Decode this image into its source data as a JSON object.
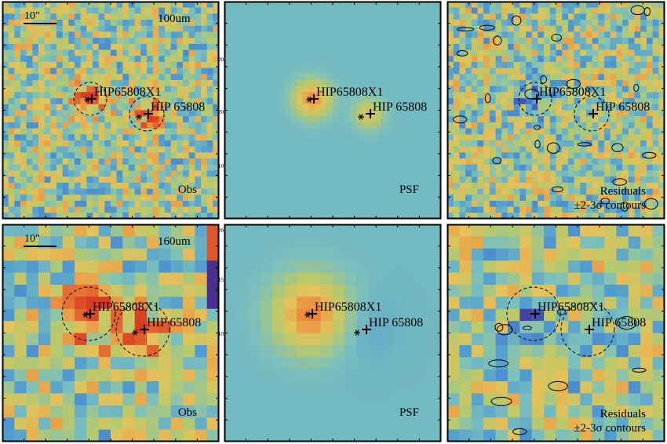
{
  "figure": {
    "scale_bar": "10\"",
    "panels": [
      {
        "id": "obs-100",
        "row": "top",
        "kind": "obs",
        "band": "100um",
        "label": "Obs",
        "sublabel": "",
        "pixels": 36,
        "seed": 11
      },
      {
        "id": "psf-100",
        "row": "top",
        "kind": "psf",
        "band": "",
        "label": "PSF",
        "sublabel": "",
        "pixels": 36,
        "seed": 12
      },
      {
        "id": "res-100",
        "row": "top",
        "kind": "res",
        "band": "",
        "label": "Residuals",
        "sublabel": "±2-3σ contours",
        "pixels": 36,
        "seed": 13
      },
      {
        "id": "obs-160",
        "row": "bottom",
        "kind": "obs",
        "band": "160um",
        "label": "Obs",
        "sublabel": "",
        "pixels": 18,
        "seed": 21
      },
      {
        "id": "psf-160",
        "row": "bottom",
        "kind": "psf",
        "band": "",
        "label": "PSF",
        "sublabel": "",
        "pixels": 18,
        "seed": 22
      },
      {
        "id": "res-160",
        "row": "bottom",
        "kind": "res",
        "band": "",
        "label": "Residuals",
        "sublabel": "±2-3σ contours",
        "pixels": 18,
        "seed": 23
      }
    ],
    "sources": [
      {
        "name": "HIP65808X1"
      },
      {
        "name": "HIP 65808"
      }
    ],
    "psf_ticks": {
      "top": [
        "10",
        "20",
        "30"
      ],
      "bottom": [
        "10",
        "15",
        "20"
      ]
    },
    "colormap": [
      "#4a2f8f",
      "#3f5fc0",
      "#4f9bd0",
      "#7cc0bc",
      "#b8c96a",
      "#e4c15a",
      "#ec8a3c",
      "#d83a22"
    ]
  }
}
